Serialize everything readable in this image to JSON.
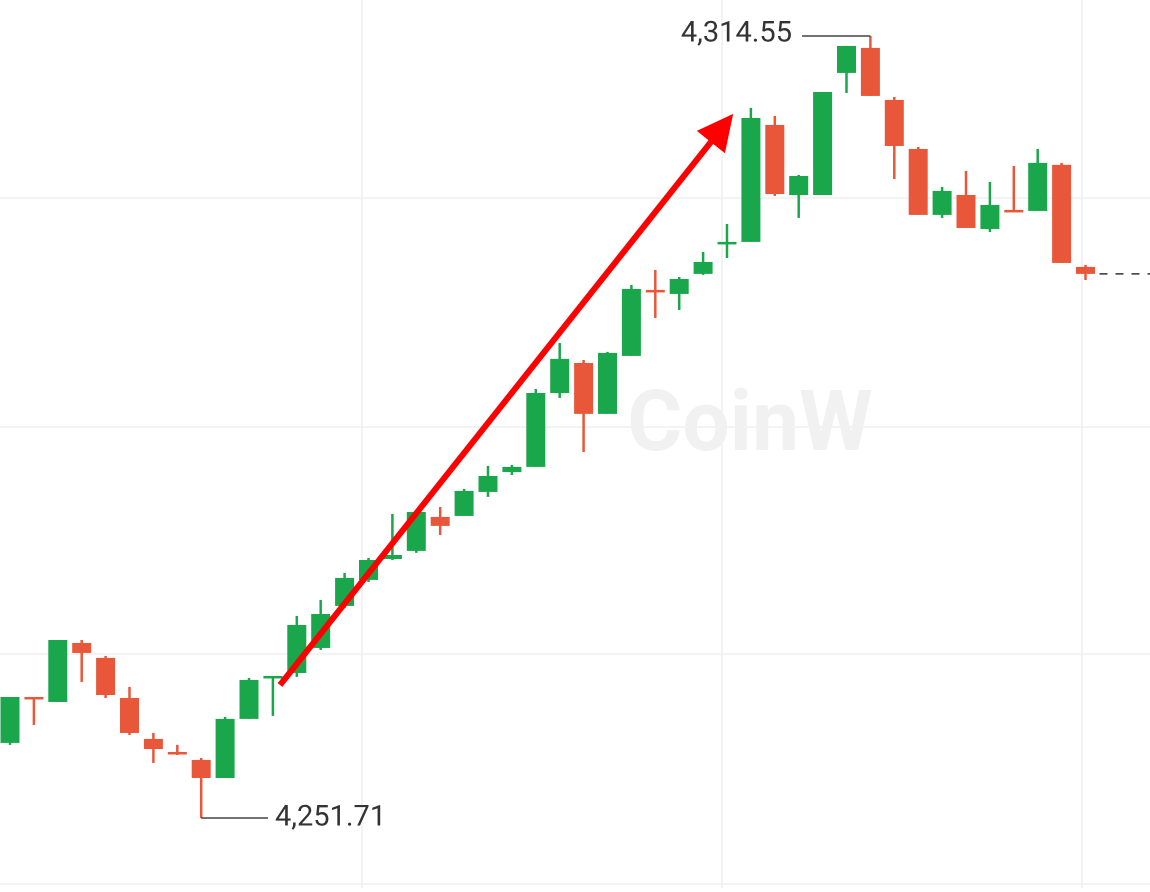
{
  "chart_data": {
    "type": "candlestick",
    "watermark": "CoinW",
    "open": [
      4257.74,
      4261.43,
      4261.03,
      4265.77,
      4264.57,
      4261.35,
      4258.06,
      4257.01,
      4256.37,
      4254.92,
      4259.67,
      4262.96,
      4263.36,
      4265.37,
      4268.75,
      4270.84,
      4272.52,
      4273.17,
      4275.9,
      4275.98,
      4277.91,
      4279.51,
      4279.92,
      4285.86,
      4288.27,
      4284.18,
      4288.84,
      4294.14,
      4293.82,
      4295.43,
      4297.84,
      4298.0,
      4307.4,
      4301.77,
      4301.77,
      4311.58,
      4313.59,
      4309.41,
      4305.47,
      4300.17,
      4301.77,
      4299.04,
      4300.57,
      4300.49,
      4304.19,
      4295.99
    ],
    "high": [
      4261.43,
      4261.43,
      4266.01,
      4266.01,
      4264.73,
      4262.24,
      4258.54,
      4257.58,
      4256.53,
      4259.83,
      4262.96,
      4263.12,
      4267.94,
      4269.23,
      4271.4,
      4272.6,
      4276.14,
      4276.46,
      4276.7,
      4278.15,
      4280.0,
      4280.08,
      4286.18,
      4289.88,
      4288.51,
      4289.16,
      4294.54,
      4295.75,
      4295.18,
      4297.19,
      4299.44,
      4308.77,
      4308.12,
      4303.38,
      4310.05,
      4313.75,
      4314.55,
      4309.65,
      4305.63,
      4302.42,
      4303.7,
      4302.82,
      4304.1,
      4305.47,
      4304.35,
      4296.15
    ],
    "low": [
      4257.58,
      4259.18,
      4261.03,
      4262.64,
      4261.35,
      4258.38,
      4256.13,
      4256.77,
      4251.71,
      4254.92,
      4259.67,
      4259.91,
      4263.04,
      4265.21,
      4268.59,
      4270.67,
      4272.44,
      4273.01,
      4274.45,
      4275.98,
      4277.51,
      4279.27,
      4279.92,
      4285.46,
      4281.12,
      4284.18,
      4288.84,
      4291.89,
      4292.53,
      4295.35,
      4296.71,
      4298.0,
      4301.69,
      4299.93,
      4301.77,
      4309.97,
      4309.73,
      4303.06,
      4300.17,
      4299.93,
      4299.12,
      4298.8,
      4300.41,
      4300.49,
      4296.31,
      4294.94
    ],
    "close": [
      4261.43,
      4261.27,
      4266.01,
      4264.97,
      4261.59,
      4258.54,
      4257.25,
      4256.85,
      4254.92,
      4259.67,
      4262.8,
      4263.12,
      4267.22,
      4268.1,
      4271.0,
      4272.44,
      4272.84,
      4276.3,
      4275.18,
      4277.99,
      4279.19,
      4279.92,
      4285.86,
      4288.6,
      4284.18,
      4289.08,
      4294.22,
      4293.98,
      4295.02,
      4296.39,
      4298.0,
      4307.96,
      4301.85,
      4303.3,
      4310.05,
      4313.75,
      4309.73,
      4305.71,
      4300.17,
      4302.1,
      4299.12,
      4300.97,
      4300.41,
      4304.35,
      4296.31,
      4295.43
    ],
    "up_color": "#1aa64a",
    "down_color": "#e8573a",
    "ylim": [
      4246.08,
      4317.44
    ],
    "high_label": {
      "value": 4314.55,
      "label": "4,314.55"
    },
    "low_label": {
      "value": 4251.71,
      "label": "4,251.71"
    }
  }
}
